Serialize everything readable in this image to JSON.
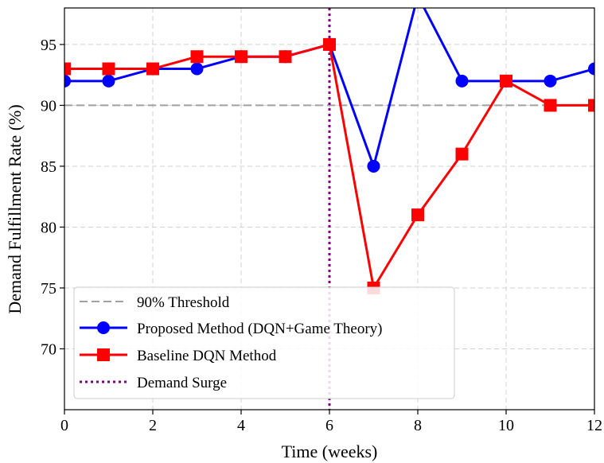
{
  "chart_data": {
    "type": "line",
    "xlabel": "Time (weeks)",
    "ylabel": "Demand Fulfillment Rate (%)",
    "xlim": [
      0,
      12
    ],
    "ylim": [
      65,
      98
    ],
    "xticks": [
      "0",
      "2",
      "4",
      "6",
      "8",
      "10",
      "12"
    ],
    "yticks": [
      "70",
      "75",
      "80",
      "85",
      "90",
      "95"
    ],
    "grid": true,
    "legend_placement": "lower-left",
    "x": [
      0,
      1,
      2,
      3,
      4,
      5,
      6,
      7,
      8,
      9,
      10,
      11,
      12
    ],
    "series": [
      {
        "name": "Proposed Method (DQN+Game Theory)",
        "values": [
          92,
          92,
          93,
          93,
          94,
          94,
          95,
          85,
          99,
          92,
          92,
          92,
          93
        ],
        "color": "#0000ff",
        "marker": "circle"
      },
      {
        "name": "Baseline DQN Method",
        "values": [
          93,
          93,
          93,
          94,
          94,
          94,
          95,
          75,
          81,
          86,
          92,
          90,
          90
        ],
        "color": "#ff0000",
        "marker": "square"
      }
    ],
    "threshold": {
      "name": "90% Threshold",
      "value": 90,
      "color": "#a0a0a0"
    },
    "event_line": {
      "name": "Demand Surge",
      "x": 6,
      "color": "#800080"
    }
  }
}
